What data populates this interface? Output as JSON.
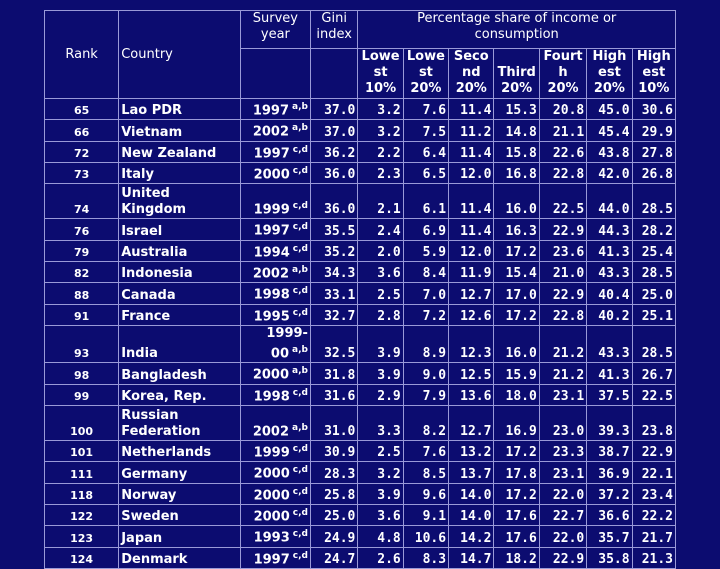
{
  "header": {
    "rank": "Rank",
    "country": "Country",
    "survey_year_line1": "Survey",
    "survey_year_line2": "year",
    "gini_line1": "Gini",
    "gini_line2": "index",
    "share_line1": "Percentage share of income or",
    "share_line2": "consumption",
    "sub": [
      [
        "Lowe",
        "st",
        "10%"
      ],
      [
        "Lowe",
        "st",
        "20%"
      ],
      [
        "Seco",
        "nd",
        "20%"
      ],
      [
        "",
        "Third",
        "20%"
      ],
      [
        "Fourt",
        "h",
        "20%"
      ],
      [
        "High",
        "est",
        "20%"
      ],
      [
        "High",
        "est",
        "10%"
      ]
    ]
  },
  "rows": [
    {
      "rank": "65",
      "country": "Lao PDR",
      "year": "1997",
      "note": "a,b",
      "gini": "37.0",
      "v": [
        "3.2",
        "7.6",
        "11.4",
        "15.3",
        "20.8",
        "45.0",
        "30.6"
      ]
    },
    {
      "rank": "66",
      "country": "Vietnam",
      "year": "2002",
      "note": "a,b",
      "gini": "37.0",
      "v": [
        "3.2",
        "7.5",
        "11.2",
        "14.8",
        "21.1",
        "45.4",
        "29.9"
      ]
    },
    {
      "rank": "72",
      "country": "New Zealand",
      "year": "1997",
      "note": "c,d",
      "gini": "36.2",
      "v": [
        "2.2",
        "6.4",
        "11.4",
        "15.8",
        "22.6",
        "43.8",
        "27.8"
      ]
    },
    {
      "rank": "73",
      "country": "Italy",
      "year": "2000",
      "note": "c,d",
      "gini": "36.0",
      "v": [
        "2.3",
        "6.5",
        "12.0",
        "16.8",
        "22.8",
        "42.0",
        "26.8"
      ]
    },
    {
      "rank": "74",
      "country": "United Kingdom",
      "year": "1999",
      "note": "c,d",
      "gini": "36.0",
      "v": [
        "2.1",
        "6.1",
        "11.4",
        "16.0",
        "22.5",
        "44.0",
        "28.5"
      ]
    },
    {
      "rank": "76",
      "country": "Israel",
      "year": "1997",
      "note": "c,d",
      "gini": "35.5",
      "v": [
        "2.4",
        "6.9",
        "11.4",
        "16.3",
        "22.9",
        "44.3",
        "28.2"
      ]
    },
    {
      "rank": "79",
      "country": "Australia",
      "year": "1994",
      "note": "c,d",
      "gini": "35.2",
      "v": [
        "2.0",
        "5.9",
        "12.0",
        "17.2",
        "23.6",
        "41.3",
        "25.4"
      ]
    },
    {
      "rank": "82",
      "country": "Indonesia",
      "year": "2002",
      "note": "a,b",
      "gini": "34.3",
      "v": [
        "3.6",
        "8.4",
        "11.9",
        "15.4",
        "21.0",
        "43.3",
        "28.5"
      ]
    },
    {
      "rank": "88",
      "country": "Canada",
      "year": "1998",
      "note": "c,d",
      "gini": "33.1",
      "v": [
        "2.5",
        "7.0",
        "12.7",
        "17.0",
        "22.9",
        "40.4",
        "25.0"
      ]
    },
    {
      "rank": "91",
      "country": "France",
      "year": "1995",
      "note": "c,d",
      "gini": "32.7",
      "v": [
        "2.8",
        "7.2",
        "12.6",
        "17.2",
        "22.8",
        "40.2",
        "25.1"
      ]
    },
    {
      "rank": "93",
      "country": "India",
      "year": "1999-00",
      "note": "a,b",
      "gini": "32.5",
      "v": [
        "3.9",
        "8.9",
        "12.3",
        "16.0",
        "21.2",
        "43.3",
        "28.5"
      ]
    },
    {
      "rank": "98",
      "country": "Bangladesh",
      "year": "2000",
      "note": "a,b",
      "gini": "31.8",
      "v": [
        "3.9",
        "9.0",
        "12.5",
        "15.9",
        "21.2",
        "41.3",
        "26.7"
      ]
    },
    {
      "rank": "99",
      "country": "Korea, Rep.",
      "year": "1998",
      "note": "c,d",
      "gini": "31.6",
      "v": [
        "2.9",
        "7.9",
        "13.6",
        "18.0",
        "23.1",
        "37.5",
        "22.5"
      ]
    },
    {
      "rank": "100",
      "country": "Russian Federation",
      "year": "2002",
      "note": "a,b",
      "gini": "31.0",
      "v": [
        "3.3",
        "8.2",
        "12.7",
        "16.9",
        "23.0",
        "39.3",
        "23.8"
      ]
    },
    {
      "rank": "101",
      "country": "Netherlands",
      "year": "1999",
      "note": "c,d",
      "gini": "30.9",
      "v": [
        "2.5",
        "7.6",
        "13.2",
        "17.2",
        "23.3",
        "38.7",
        "22.9"
      ]
    },
    {
      "rank": "111",
      "country": "Germany",
      "year": "2000",
      "note": "c,d",
      "gini": "28.3",
      "v": [
        "3.2",
        "8.5",
        "13.7",
        "17.8",
        "23.1",
        "36.9",
        "22.1"
      ]
    },
    {
      "rank": "118",
      "country": "Norway",
      "year": "2000",
      "note": "c,d",
      "gini": "25.8",
      "v": [
        "3.9",
        "9.6",
        "14.0",
        "17.2",
        "22.0",
        "37.2",
        "23.4"
      ]
    },
    {
      "rank": "122",
      "country": "Sweden",
      "year": "2000",
      "note": "c,d",
      "gini": "25.0",
      "v": [
        "3.6",
        "9.1",
        "14.0",
        "17.6",
        "22.7",
        "36.6",
        "22.2"
      ]
    },
    {
      "rank": "123",
      "country": "Japan",
      "year": "1993",
      "note": "c,d",
      "gini": "24.9",
      "v": [
        "4.8",
        "10.6",
        "14.2",
        "17.6",
        "22.0",
        "35.7",
        "21.7"
      ]
    },
    {
      "rank": "124",
      "country": "Denmark",
      "year": "1997",
      "note": "c,d",
      "gini": "24.7",
      "v": [
        "2.6",
        "8.3",
        "14.7",
        "18.2",
        "22.9",
        "35.8",
        "21.3"
      ]
    }
  ],
  "tall_rows": [
    4,
    10,
    13
  ],
  "colors": {
    "background": "#0c0c70",
    "text": "#ffffff",
    "grid": "#9a9ad8"
  }
}
